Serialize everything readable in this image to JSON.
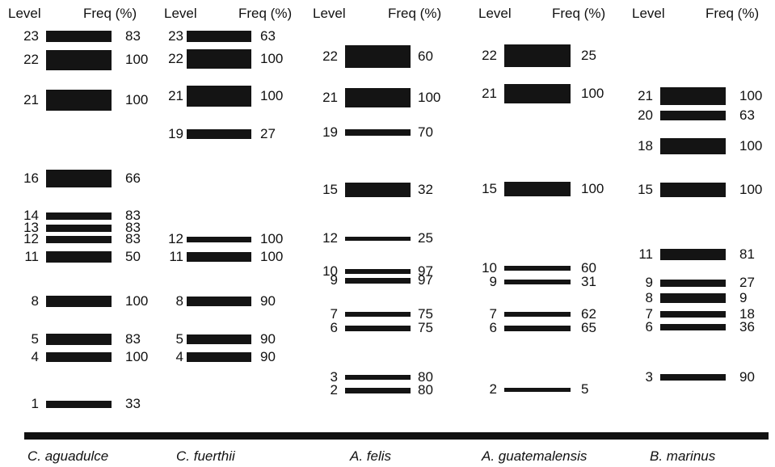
{
  "header": {
    "level_label": "Level",
    "freq_label": "Freq (%)"
  },
  "columns": [
    {
      "species": "C. aguadulce",
      "bands": [
        {
          "level": "23",
          "freq": "83"
        },
        {
          "level": "22",
          "freq": "100"
        },
        {
          "level": "21",
          "freq": "100"
        },
        {
          "level": "16",
          "freq": "66"
        },
        {
          "level": "14",
          "freq": "83"
        },
        {
          "level": "13",
          "freq": "83"
        },
        {
          "level": "12",
          "freq": "83"
        },
        {
          "level": "11",
          "freq": "50"
        },
        {
          "level": "8",
          "freq": "100"
        },
        {
          "level": "5",
          "freq": "83"
        },
        {
          "level": "4",
          "freq": "100"
        },
        {
          "level": "1",
          "freq": "33"
        }
      ]
    },
    {
      "species": "C. fuerthii",
      "bands": [
        {
          "level": "23",
          "freq": "63"
        },
        {
          "level": "22",
          "freq": "100"
        },
        {
          "level": "21",
          "freq": "100"
        },
        {
          "level": "19",
          "freq": "27"
        },
        {
          "level": "12",
          "freq": "100"
        },
        {
          "level": "11",
          "freq": "100"
        },
        {
          "level": "8",
          "freq": "90"
        },
        {
          "level": "5",
          "freq": "90"
        },
        {
          "level": "4",
          "freq": "90"
        }
      ]
    },
    {
      "species": "A. felis",
      "bands": [
        {
          "level": "22",
          "freq": "60"
        },
        {
          "level": "21",
          "freq": "100"
        },
        {
          "level": "19",
          "freq": "70"
        },
        {
          "level": "15",
          "freq": "32"
        },
        {
          "level": "12",
          "freq": "25"
        },
        {
          "level": "10",
          "freq": "97"
        },
        {
          "level": "9",
          "freq": "97"
        },
        {
          "level": "7",
          "freq": "75"
        },
        {
          "level": "6",
          "freq": "75"
        },
        {
          "level": "3",
          "freq": "80"
        },
        {
          "level": "2",
          "freq": "80"
        }
      ]
    },
    {
      "species": "A. guatemalensis",
      "bands": [
        {
          "level": "22",
          "freq": "25"
        },
        {
          "level": "21",
          "freq": "100"
        },
        {
          "level": "15",
          "freq": "100"
        },
        {
          "level": "10",
          "freq": "60"
        },
        {
          "level": "9",
          "freq": "31"
        },
        {
          "level": "7",
          "freq": "62"
        },
        {
          "level": "6",
          "freq": "65"
        },
        {
          "level": "2",
          "freq": "5"
        }
      ]
    },
    {
      "species": "B. marinus",
      "bands": [
        {
          "level": "21",
          "freq": "100"
        },
        {
          "level": "20",
          "freq": "63"
        },
        {
          "level": "18",
          "freq": "100"
        },
        {
          "level": "15",
          "freq": "100"
        },
        {
          "level": "11",
          "freq": "81"
        },
        {
          "level": "9",
          "freq": "27"
        },
        {
          "level": "8",
          "freq": "9"
        },
        {
          "level": "7",
          "freq": "18"
        },
        {
          "level": "6",
          "freq": "36"
        },
        {
          "level": "3",
          "freq": "90"
        }
      ]
    }
  ]
}
